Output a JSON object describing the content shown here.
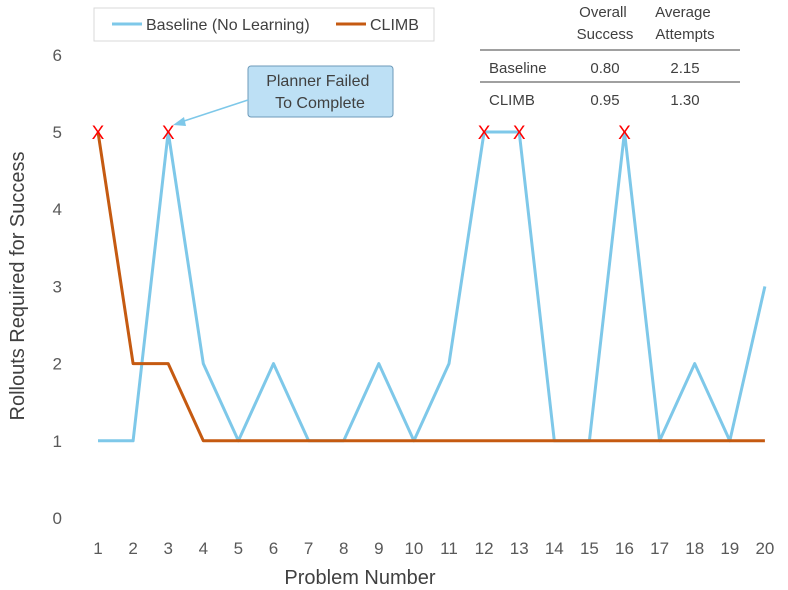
{
  "chart_data": {
    "type": "line",
    "x": [
      1,
      2,
      3,
      4,
      5,
      6,
      7,
      8,
      9,
      10,
      11,
      12,
      13,
      14,
      15,
      16,
      17,
      18,
      19,
      20
    ],
    "series": [
      {
        "name": "Baseline (No Learning)",
        "color": "#7ec8e9",
        "values": [
          1,
          1,
          5,
          2,
          1,
          2,
          1,
          1,
          2,
          1,
          2,
          5,
          5,
          1,
          1,
          5,
          1,
          2,
          1,
          3
        ]
      },
      {
        "name": "CLIMB",
        "color": "#c55a11",
        "values": [
          5,
          2,
          2,
          1,
          1,
          1,
          1,
          1,
          1,
          1,
          1,
          1,
          1,
          1,
          1,
          1,
          1,
          1,
          1,
          1
        ]
      }
    ],
    "failed_points": [
      1,
      3,
      12,
      13,
      16
    ],
    "fail_marker": "X",
    "xlabel": "Problem Number",
    "ylabel": "Rollouts Required for Success",
    "ylim": [
      0,
      6
    ],
    "yticks": [
      0,
      1,
      2,
      3,
      4,
      5,
      6
    ],
    "grid": false,
    "legend_position": "top-left",
    "annotation": "Planner Failed\nTo Complete",
    "summary_table": {
      "headers": [
        "Overall\nSuccess",
        "Average\nAttempts"
      ],
      "rows": [
        {
          "label": "Baseline",
          "values": [
            "0.80",
            "2.15"
          ]
        },
        {
          "label": "CLIMB",
          "values": [
            "0.95",
            "1.30"
          ]
        }
      ]
    }
  }
}
